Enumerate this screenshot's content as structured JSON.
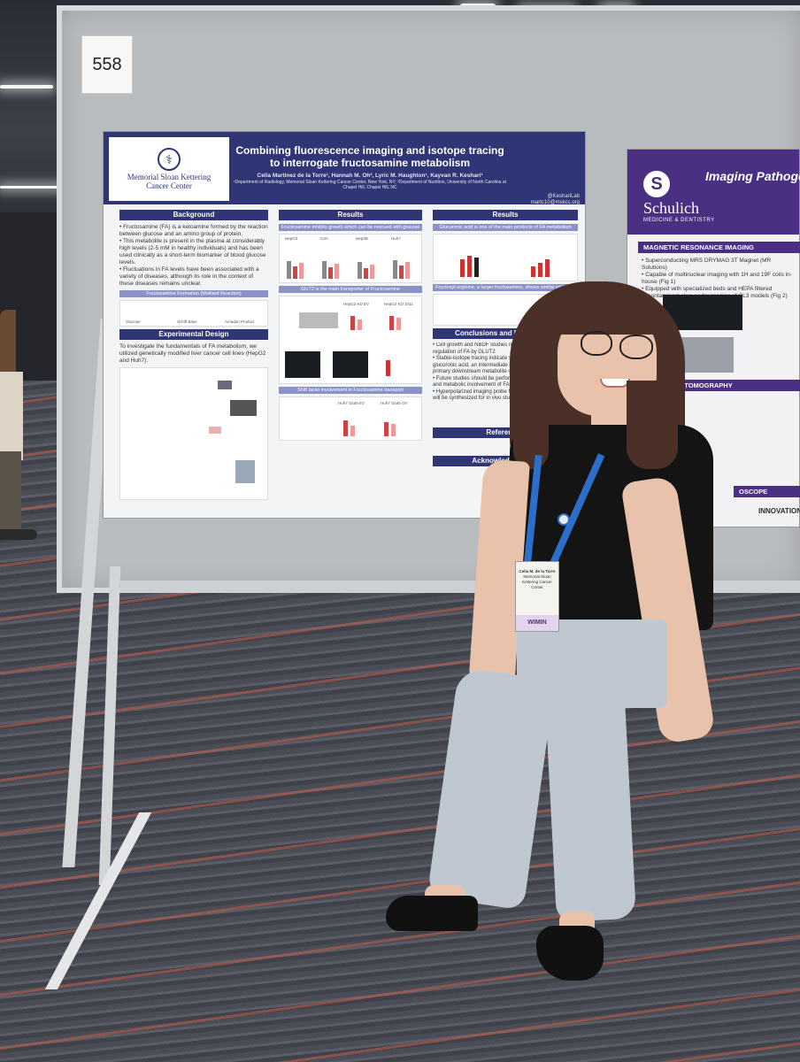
{
  "booth_number": "558",
  "main_poster": {
    "institution": "Memorial Sloan Kettering\nCancer Center",
    "title": "Combining fluorescence imaging and isotope tracing to interrogate fructosamine metabolism",
    "authors": "Celia Martinez de la Torre¹, Hannah M. Oh², Lyric M. Haughton¹, Kayvan R. Keshari¹",
    "affiliations": "¹Department of Radiology, Memorial Sloan Kettering Cancer Center, New York, NY; ²Department of Nutrition, University of North Carolina at Chapel Hill, Chapel Hill, NC",
    "contact_handle": "@KeshariLab",
    "contact_email": "martc10@mskcc.org",
    "sections": {
      "background": "Background",
      "background_text": "• Fructosamine (FA) is a ketoamine formed by the reaction between glucose and an amino group of protein.\n• This metabolite is present in the plasma at considerably high levels (2-5 mM in healthy individuals) and has been used clinically as a short-term biomarker of blood glucose levels.\n• Fluctuations in FA levels have been associated with a variety of diseases, although its role in the context of these diseases remains unclear.",
      "fa_formation": "Fructosamine Formation (Maillard Reaction)",
      "glucose": "Glucose",
      "schiff": "Schiff Base",
      "amadori": "Amadori Product",
      "experimental_design": "Experimental Design",
      "exp_text": "To investigate the fundamentals of FA metabolism, we utilized genetically modified liver cancer cell lines (HepG2 and Huh7).",
      "results1": "Results",
      "results1_sub": "Fructosamine inhibits growth which can be rescued with glucose",
      "cell_lines": [
        "HepG2",
        "C3A",
        "Hep3B",
        "Huh7"
      ],
      "glut_sub": "GluT2 is the main transporter of Fructosamine",
      "glut_labels": [
        "HepG2 KD EV",
        "HepG2 KD 1011"
      ],
      "shift_sub": "Shift lacks involvement in Fructosamine transport",
      "shift_labels": [
        "Huh7 Glut5 EV",
        "Huh7 Glut5 OV"
      ],
      "results2": "Results",
      "results2_sub": "Glucuronic acid is one of the main products of FA metabolism",
      "fructosyl_sub": "Fructosyl-arginine, a larger fructosamine, shows similar inhibition",
      "conclusions": "Conclusions and Future Work",
      "conclusions_text": "• Cell growth and NBDF studies reveal previously unknown regulation of FA by GLUT2\n• Stable-isotope tracing indicate significant labeling of glucuronic acid, an intermediate in cell glycosylation, as the primary downstream metabolite of FA metabolism\n• Future studies should be performed to confirm the pathways and metabolic involvement of FA\n• Hyperpolarized imaging probe for fructosamine metabolism will be synthesized for in vivo studies",
      "references": "References",
      "acknowledgements": "Acknowledgements"
    }
  },
  "right_poster": {
    "school_name": "Schulich",
    "school_sub": "MEDICINE & DENTISTRY",
    "title": "Imaging Pathoge",
    "mri_section": "MAGNETIC RESONANCE IMAGING",
    "mri_bullets": "• Superconducting MRS DRYMAG 3T Magnet (MR Solutions)\n• Capable of multinuclear imaging with 1H and 19F coils in-house (Fig 1)\n• Equipped with specialized beds and HEPA filtered decontaminant sleeves for imaging of CL3 models (Fig 2)",
    "pet_section": "N EMISSION TOMOGRAPHY",
    "scope_section": "OSCOPE",
    "innovation": "INNOVATION"
  },
  "badge": {
    "name": "Celia M. de la Torre",
    "org": "Memorial Sloan Kettering Cancer Center",
    "ribbon": "WIMIN"
  },
  "colors": {
    "msk_blue": "#2f3575",
    "schulich_purple": "#4b2f82",
    "lanyard": "#2c6ec8"
  }
}
